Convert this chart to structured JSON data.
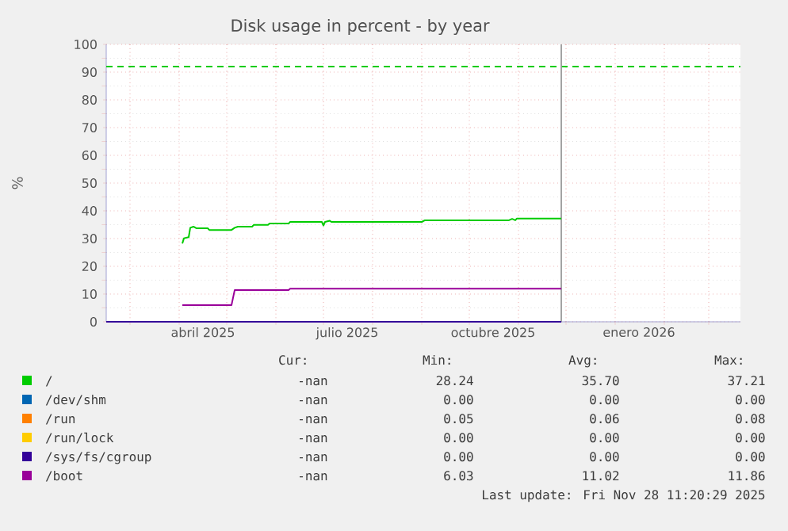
{
  "chart_data": {
    "type": "line",
    "title": "Disk usage in percent - by year",
    "ylabel": "%",
    "xlim": [
      "2025-02-14",
      "2026-03-21"
    ],
    "xticks": [
      {
        "value": "2025-03-01",
        "label": null
      },
      {
        "value": "2025-04-01",
        "label": null
      },
      {
        "value": "2025-04-16",
        "label": "abril 2025"
      },
      {
        "value": "2025-05-01",
        "label": null
      },
      {
        "value": "2025-06-01",
        "label": null
      },
      {
        "value": "2025-07-01",
        "label": null
      },
      {
        "value": "2025-07-16",
        "label": "julio 2025"
      },
      {
        "value": "2025-08-01",
        "label": null
      },
      {
        "value": "2025-09-01",
        "label": null
      },
      {
        "value": "2025-10-01",
        "label": null
      },
      {
        "value": "2025-10-16",
        "label": "octubre 2025"
      },
      {
        "value": "2025-11-01",
        "label": null
      },
      {
        "value": "2025-12-01",
        "label": null
      },
      {
        "value": "2026-01-01",
        "label": null
      },
      {
        "value": "2026-01-16",
        "label": "enero 2026"
      },
      {
        "value": "2026-02-01",
        "label": null
      },
      {
        "value": "2026-03-01",
        "label": null
      }
    ],
    "ylim": [
      0,
      100
    ],
    "yticks": [
      0,
      10,
      20,
      30,
      40,
      50,
      60,
      70,
      80,
      90,
      100
    ],
    "grid": true,
    "legend": "bottom",
    "series": [
      {
        "name": "/",
        "color": "#00cc00",
        "x": [
          "2025-04-03",
          "2025-04-04",
          "2025-04-07",
          "2025-04-08",
          "2025-04-10",
          "2025-04-12",
          "2025-04-19",
          "2025-04-20",
          "2025-05-04",
          "2025-05-06",
          "2025-05-08",
          "2025-05-17",
          "2025-05-18",
          "2025-05-27",
          "2025-05-28",
          "2025-06-09",
          "2025-06-10",
          "2025-06-30",
          "2025-07-01",
          "2025-07-02",
          "2025-07-05",
          "2025-07-06",
          "2025-09-01",
          "2025-09-03",
          "2025-10-26",
          "2025-10-28",
          "2025-10-30",
          "2025-10-31",
          "2025-11-28"
        ],
        "values": [
          28.2,
          30.1,
          30.5,
          33.9,
          34.3,
          33.7,
          33.7,
          33.1,
          33.1,
          33.9,
          34.3,
          34.3,
          34.9,
          34.9,
          35.4,
          35.4,
          36.0,
          36.0,
          34.7,
          36.0,
          36.4,
          36.0,
          36.0,
          36.6,
          36.6,
          37.1,
          36.6,
          37.2,
          37.2
        ]
      },
      {
        "name": "/dev/shm",
        "color": "#0066b3"
      },
      {
        "name": "/run",
        "color": "#ff8000"
      },
      {
        "name": "/run/lock",
        "color": "#ffcc00"
      },
      {
        "name": "/sys/fs/cgroup",
        "color": "#330099",
        "x": [
          "2025-02-14",
          "2025-11-28"
        ],
        "values": [
          0,
          0
        ]
      },
      {
        "name": "/boot",
        "color": "#990099",
        "x": [
          "2025-04-03",
          "2025-05-04",
          "2025-05-06",
          "2025-06-09",
          "2025-06-10",
          "2025-11-28"
        ],
        "values": [
          6.0,
          6.0,
          11.4,
          11.4,
          11.9,
          11.9
        ]
      }
    ],
    "ref_lines": [
      {
        "axis": "y",
        "value": 92,
        "color": "#00cc00",
        "line_style": "dashed"
      },
      {
        "axis": "x",
        "value": "2025-11-28",
        "color": "#999999",
        "line_style": "solid"
      }
    ],
    "annotations": [
      "Cur:",
      "Min:",
      "Avg:",
      "Max:",
      "-nan",
      "28.24",
      "35.70",
      "37.21",
      "-nan",
      "0.00",
      "0.00",
      "0.00",
      "-nan",
      "0.05",
      "0.06",
      "0.08",
      "-nan",
      "0.00",
      "0.00",
      "0.00",
      "-nan",
      "0.00",
      "0.00",
      "0.00",
      "-nan",
      "6.03",
      "11.02",
      "11.86",
      "Last update: Fri Nov 28 11:20:29 2025"
    ]
  }
}
